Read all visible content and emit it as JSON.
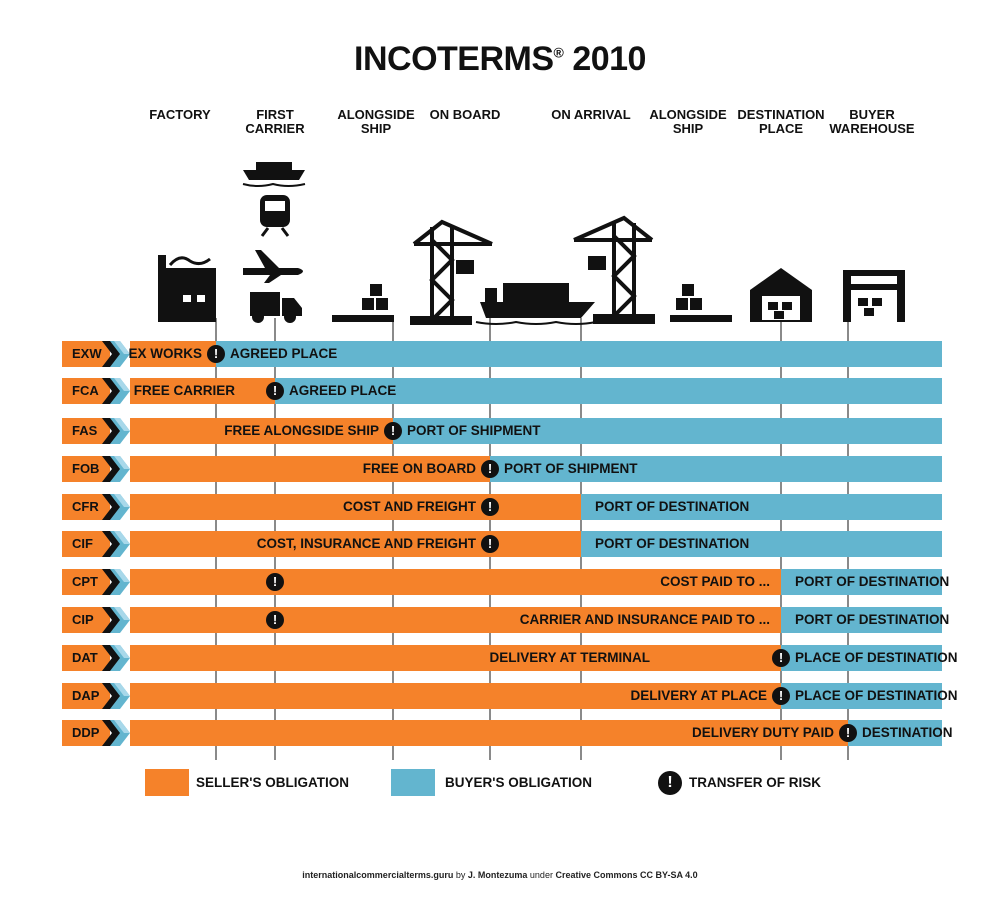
{
  "title": "INCOTERMS",
  "title_reg": "®",
  "title_year": "2010",
  "stages": [
    {
      "key": "factory",
      "label": "FACTORY"
    },
    {
      "key": "first_carrier",
      "label": "FIRST\nCARRIER"
    },
    {
      "key": "alongside_ship_origin",
      "label": "ALONGSIDE\nSHIP"
    },
    {
      "key": "on_board",
      "label": "ON BOARD"
    },
    {
      "key": "on_arrival",
      "label": "ON ARRIVAL"
    },
    {
      "key": "alongside_ship_dest",
      "label": "ALONGSIDE\nSHIP"
    },
    {
      "key": "destination_place",
      "label": "DESTINATION\nPLACE"
    },
    {
      "key": "buyer_warehouse",
      "label": "BUYER\nWAREHOUSE"
    }
  ],
  "terms": [
    {
      "code": "EXW",
      "seller": "EX WORKS",
      "buyer": "AGREED PLACE",
      "cost_transfer": "factory",
      "risk_transfer": "factory"
    },
    {
      "code": "FCA",
      "seller": "FREE CARRIER",
      "buyer": "AGREED PLACE",
      "cost_transfer": "first_carrier",
      "risk_transfer": "first_carrier"
    },
    {
      "code": "FAS",
      "seller": "FREE ALONGSIDE SHIP",
      "buyer": "PORT OF SHIPMENT",
      "cost_transfer": "alongside_ship_origin",
      "risk_transfer": "alongside_ship_origin"
    },
    {
      "code": "FOB",
      "seller": "FREE ON BOARD",
      "buyer": "PORT OF SHIPMENT",
      "cost_transfer": "on_board",
      "risk_transfer": "on_board"
    },
    {
      "code": "CFR",
      "seller": "COST AND FREIGHT",
      "buyer": "PORT OF DESTINATION",
      "cost_transfer": "on_arrival",
      "risk_transfer": "on_board"
    },
    {
      "code": "CIF",
      "seller": "COST, INSURANCE AND FREIGHT",
      "buyer": "PORT OF DESTINATION",
      "cost_transfer": "on_arrival",
      "risk_transfer": "on_board"
    },
    {
      "code": "CPT",
      "seller": "COST PAID TO ...",
      "buyer": "PORT OF DESTINATION",
      "cost_transfer": "destination_place",
      "risk_transfer": "first_carrier"
    },
    {
      "code": "CIP",
      "seller": "CARRIER AND INSURANCE PAID TO ...",
      "buyer": "PORT OF DESTINATION",
      "cost_transfer": "destination_place",
      "risk_transfer": "first_carrier"
    },
    {
      "code": "DAT",
      "seller": "DELIVERY AT TERMINAL",
      "buyer": "PLACE OF DESTINATION",
      "cost_transfer": "destination_place",
      "risk_transfer": "destination_place"
    },
    {
      "code": "DAP",
      "seller": "DELIVERY AT PLACE",
      "buyer": "PLACE OF DESTINATION",
      "cost_transfer": "destination_place",
      "risk_transfer": "destination_place"
    },
    {
      "code": "DDP",
      "seller": "DELIVERY DUTY PAID",
      "buyer": "DESTINATION",
      "cost_transfer": "buyer_warehouse_edge",
      "risk_transfer": "buyer_warehouse_edge"
    }
  ],
  "risk_symbol": "!",
  "legend": {
    "seller": "SELLER'S OBLIGATION",
    "buyer": "BUYER'S OBLIGATION",
    "risk": "TRANSFER OF RISK"
  },
  "footer": {
    "site": "internationalcommercialterms.guru",
    "by": "by",
    "author": "J. Montezuma",
    "under": "under",
    "license": "Creative Commons CC BY-SA 4.0"
  },
  "colors": {
    "seller": "#f5822a",
    "buyer": "#63b5cf",
    "risk": "#111111"
  }
}
